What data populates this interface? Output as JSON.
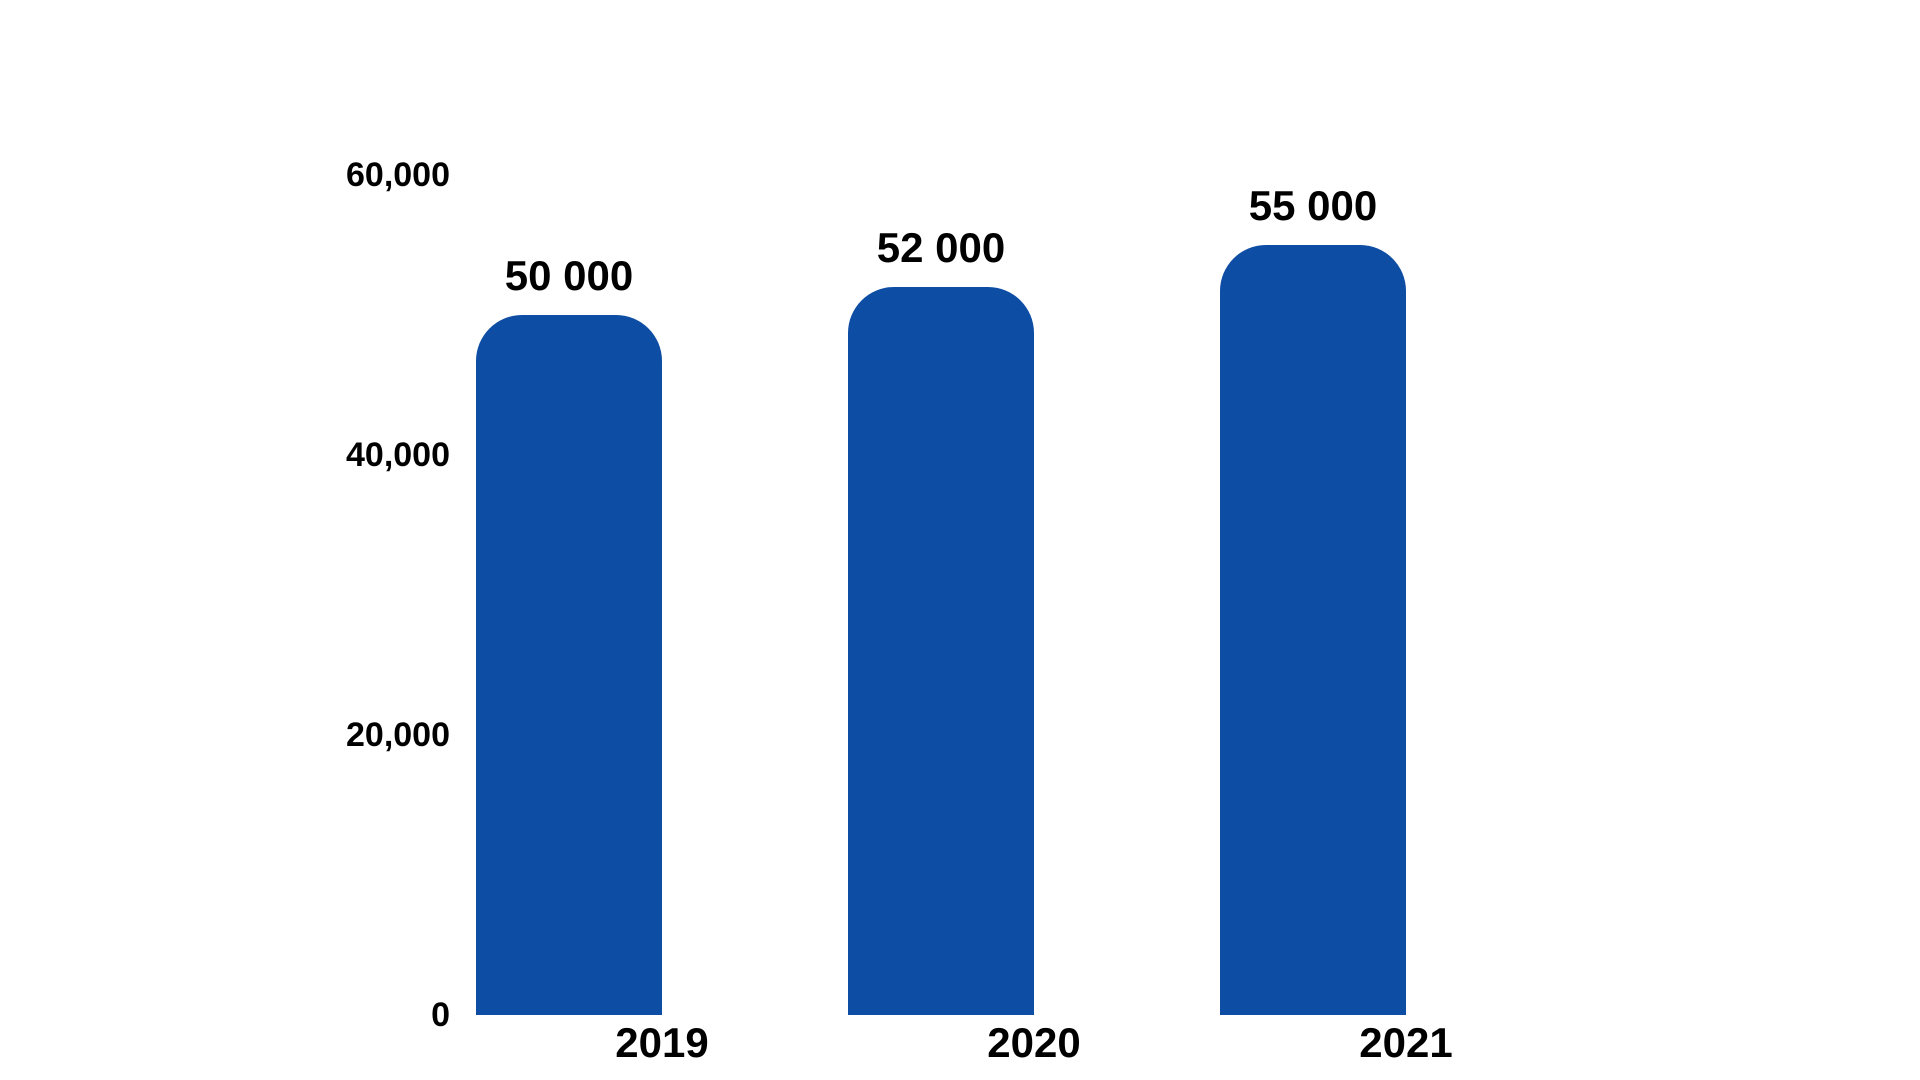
{
  "chart_data": {
    "type": "bar",
    "categories": [
      "2019",
      "2020",
      "2021"
    ],
    "values": [
      50000,
      52000,
      55000
    ],
    "value_labels": [
      "50 000",
      "52 000",
      "55 000"
    ],
    "y_ticks": [
      "60,000",
      "40,000",
      "20,000",
      "0"
    ],
    "y_tick_values": [
      60000,
      40000,
      20000,
      0
    ],
    "title": "",
    "xlabel": "",
    "ylabel": "",
    "ylim": [
      0,
      60000
    ],
    "grid": false,
    "legend": false,
    "bar_color": "#0D4DA4",
    "background_color": "#FFFFFF",
    "text_color": "#000000"
  }
}
